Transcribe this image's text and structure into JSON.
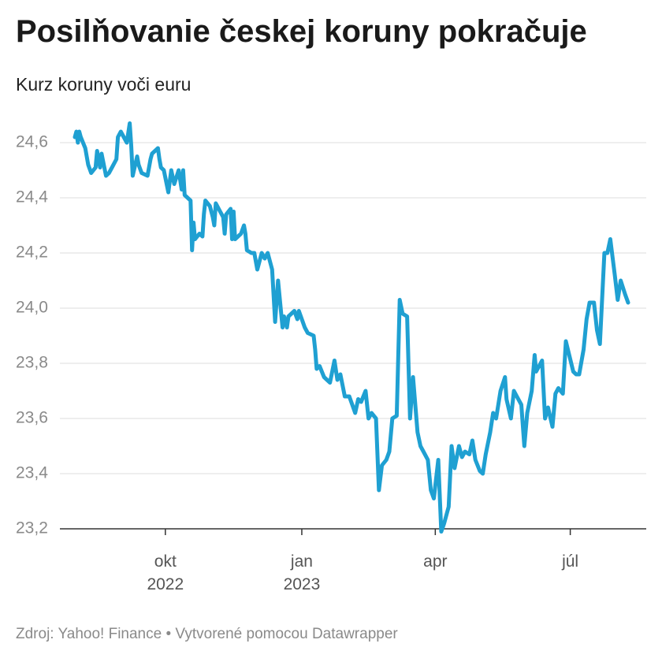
{
  "title": "Posilňovanie českej koruny pokračuje",
  "subtitle": "Kurz koruny voči euru",
  "footer": "Zdroj: Yahoo! Finance • Vytvorené pomocou Datawrapper",
  "colors": {
    "line": "#1fa0d2",
    "grid": "#dddddd",
    "axis": "#333333",
    "tick_label": "#8a8a8a"
  },
  "chart_data": {
    "type": "line",
    "x_label": "",
    "y_label": "",
    "y_range": [
      23.2,
      24.6
    ],
    "y_ticks": [
      "24,6",
      "24,4",
      "24,2",
      "24,0",
      "23,8",
      "23,6",
      "23,4",
      "23,2"
    ],
    "y_tick_values": [
      24.6,
      24.4,
      24.2,
      24.0,
      23.8,
      23.6,
      23.4,
      23.2
    ],
    "x_ticks": [
      {
        "line1": "okt",
        "line2": "2022",
        "date": "2022-10-01"
      },
      {
        "line1": "jan",
        "line2": "2023",
        "date": "2023-01-01"
      },
      {
        "line1": "apr",
        "line2": "",
        "date": "2023-04-01"
      },
      {
        "line1": "júl",
        "line2": "",
        "date": "2023-07-01"
      }
    ],
    "grid": true,
    "legend": "none",
    "series": [
      {
        "points": [
          [
            "2022-08-01",
            24.62
          ],
          [
            "2022-08-02",
            24.64
          ],
          [
            "2022-08-03",
            24.6
          ],
          [
            "2022-08-04",
            24.64
          ],
          [
            "2022-08-05",
            24.62
          ],
          [
            "2022-08-08",
            24.58
          ],
          [
            "2022-08-10",
            24.52
          ],
          [
            "2022-08-12",
            24.49
          ],
          [
            "2022-08-15",
            24.51
          ],
          [
            "2022-08-16",
            24.57
          ],
          [
            "2022-08-18",
            24.51
          ],
          [
            "2022-08-19",
            24.56
          ],
          [
            "2022-08-22",
            24.48
          ],
          [
            "2022-08-24",
            24.49
          ],
          [
            "2022-08-26",
            24.51
          ],
          [
            "2022-08-29",
            24.54
          ],
          [
            "2022-08-30",
            24.62
          ],
          [
            "2022-09-01",
            24.64
          ],
          [
            "2022-09-05",
            24.6
          ],
          [
            "2022-09-07",
            24.67
          ],
          [
            "2022-09-08",
            24.59
          ],
          [
            "2022-09-09",
            24.48
          ],
          [
            "2022-09-12",
            24.55
          ],
          [
            "2022-09-13",
            24.52
          ],
          [
            "2022-09-15",
            24.49
          ],
          [
            "2022-09-19",
            24.48
          ],
          [
            "2022-09-21",
            24.54
          ],
          [
            "2022-09-22",
            24.56
          ],
          [
            "2022-09-26",
            24.58
          ],
          [
            "2022-09-27",
            24.54
          ],
          [
            "2022-09-28",
            24.51
          ],
          [
            "2022-09-30",
            24.5
          ],
          [
            "2022-10-03",
            24.42
          ],
          [
            "2022-10-05",
            24.5
          ],
          [
            "2022-10-07",
            24.45
          ],
          [
            "2022-10-10",
            24.5
          ],
          [
            "2022-10-12",
            24.43
          ],
          [
            "2022-10-13",
            24.5
          ],
          [
            "2022-10-14",
            24.41
          ],
          [
            "2022-10-18",
            24.39
          ],
          [
            "2022-10-19",
            24.21
          ],
          [
            "2022-10-20",
            24.31
          ],
          [
            "2022-10-21",
            24.25
          ],
          [
            "2022-10-24",
            24.27
          ],
          [
            "2022-10-26",
            24.26
          ],
          [
            "2022-10-27",
            24.34
          ],
          [
            "2022-10-28",
            24.39
          ],
          [
            "2022-10-31",
            24.37
          ],
          [
            "2022-11-02",
            24.33
          ],
          [
            "2022-11-03",
            24.3
          ],
          [
            "2022-11-04",
            24.38
          ],
          [
            "2022-11-07",
            24.35
          ],
          [
            "2022-11-09",
            24.33
          ],
          [
            "2022-11-10",
            24.27
          ],
          [
            "2022-11-11",
            24.34
          ],
          [
            "2022-11-14",
            24.36
          ],
          [
            "2022-11-15",
            24.25
          ],
          [
            "2022-11-16",
            24.35
          ],
          [
            "2022-11-17",
            24.25
          ],
          [
            "2022-11-21",
            24.27
          ],
          [
            "2022-11-23",
            24.3
          ],
          [
            "2022-11-24",
            24.27
          ],
          [
            "2022-11-25",
            24.21
          ],
          [
            "2022-11-28",
            24.2
          ],
          [
            "2022-11-30",
            24.2
          ],
          [
            "2022-12-02",
            24.14
          ],
          [
            "2022-12-05",
            24.2
          ],
          [
            "2022-12-07",
            24.18
          ],
          [
            "2022-12-09",
            24.2
          ],
          [
            "2022-12-12",
            24.14
          ],
          [
            "2022-12-14",
            23.95
          ],
          [
            "2022-12-16",
            24.1
          ],
          [
            "2022-12-19",
            23.93
          ],
          [
            "2022-12-20",
            23.97
          ],
          [
            "2022-12-22",
            23.93
          ],
          [
            "2022-12-23",
            23.97
          ],
          [
            "2022-12-27",
            23.99
          ],
          [
            "2022-12-29",
            23.96
          ],
          [
            "2022-12-30",
            23.99
          ],
          [
            "2023-01-03",
            23.93
          ],
          [
            "2023-01-05",
            23.91
          ],
          [
            "2023-01-09",
            23.9
          ],
          [
            "2023-01-10",
            23.85
          ],
          [
            "2023-01-11",
            23.78
          ],
          [
            "2023-01-13",
            23.79
          ],
          [
            "2023-01-16",
            23.75
          ],
          [
            "2023-01-18",
            23.74
          ],
          [
            "2023-01-20",
            23.73
          ],
          [
            "2023-01-23",
            23.81
          ],
          [
            "2023-01-25",
            23.74
          ],
          [
            "2023-01-27",
            23.76
          ],
          [
            "2023-01-30",
            23.68
          ],
          [
            "2023-02-02",
            23.68
          ],
          [
            "2023-02-06",
            23.62
          ],
          [
            "2023-02-08",
            23.67
          ],
          [
            "2023-02-10",
            23.66
          ],
          [
            "2023-02-13",
            23.7
          ],
          [
            "2023-02-15",
            23.6
          ],
          [
            "2023-02-17",
            23.62
          ],
          [
            "2023-02-20",
            23.6
          ],
          [
            "2023-02-22",
            23.34
          ],
          [
            "2023-02-24",
            23.43
          ],
          [
            "2023-02-27",
            23.45
          ],
          [
            "2023-03-01",
            23.48
          ],
          [
            "2023-03-03",
            23.6
          ],
          [
            "2023-03-06",
            23.61
          ],
          [
            "2023-03-08",
            24.03
          ],
          [
            "2023-03-10",
            23.98
          ],
          [
            "2023-03-13",
            23.97
          ],
          [
            "2023-03-15",
            23.6
          ],
          [
            "2023-03-17",
            23.75
          ],
          [
            "2023-03-20",
            23.55
          ],
          [
            "2023-03-22",
            23.5
          ],
          [
            "2023-03-24",
            23.48
          ],
          [
            "2023-03-27",
            23.45
          ],
          [
            "2023-03-29",
            23.34
          ],
          [
            "2023-03-31",
            23.31
          ],
          [
            "2023-04-03",
            23.45
          ],
          [
            "2023-04-05",
            23.19
          ],
          [
            "2023-04-07",
            23.22
          ],
          [
            "2023-04-10",
            23.28
          ],
          [
            "2023-04-12",
            23.5
          ],
          [
            "2023-04-14",
            23.42
          ],
          [
            "2023-04-17",
            23.5
          ],
          [
            "2023-04-19",
            23.46
          ],
          [
            "2023-04-21",
            23.48
          ],
          [
            "2023-04-24",
            23.47
          ],
          [
            "2023-04-26",
            23.52
          ],
          [
            "2023-04-28",
            23.45
          ],
          [
            "2023-05-01",
            23.41
          ],
          [
            "2023-05-03",
            23.4
          ],
          [
            "2023-05-05",
            23.47
          ],
          [
            "2023-05-08",
            23.55
          ],
          [
            "2023-05-10",
            23.62
          ],
          [
            "2023-05-12",
            23.6
          ],
          [
            "2023-05-15",
            23.7
          ],
          [
            "2023-05-18",
            23.75
          ],
          [
            "2023-05-19",
            23.67
          ],
          [
            "2023-05-22",
            23.6
          ],
          [
            "2023-05-24",
            23.7
          ],
          [
            "2023-05-26",
            23.68
          ],
          [
            "2023-05-29",
            23.65
          ],
          [
            "2023-05-31",
            23.5
          ],
          [
            "2023-06-02",
            23.62
          ],
          [
            "2023-06-05",
            23.7
          ],
          [
            "2023-06-07",
            23.83
          ],
          [
            "2023-06-08",
            23.77
          ],
          [
            "2023-06-12",
            23.81
          ],
          [
            "2023-06-14",
            23.6
          ],
          [
            "2023-06-16",
            23.64
          ],
          [
            "2023-06-19",
            23.57
          ],
          [
            "2023-06-21",
            23.69
          ],
          [
            "2023-06-23",
            23.71
          ],
          [
            "2023-06-26",
            23.69
          ],
          [
            "2023-06-28",
            23.88
          ],
          [
            "2023-07-03",
            23.77
          ],
          [
            "2023-07-05",
            23.76
          ],
          [
            "2023-07-07",
            23.76
          ],
          [
            "2023-07-10",
            23.85
          ],
          [
            "2023-07-12",
            23.96
          ],
          [
            "2023-07-14",
            24.02
          ],
          [
            "2023-07-17",
            24.02
          ],
          [
            "2023-07-19",
            23.92
          ],
          [
            "2023-07-21",
            23.87
          ],
          [
            "2023-07-24",
            24.2
          ],
          [
            "2023-07-26",
            24.2
          ],
          [
            "2023-07-28",
            24.25
          ],
          [
            "2023-07-31",
            24.12
          ],
          [
            "2023-08-02",
            24.03
          ],
          [
            "2023-08-04",
            24.1
          ],
          [
            "2023-08-07",
            24.05
          ],
          [
            "2023-08-09",
            24.02
          ]
        ]
      }
    ]
  }
}
